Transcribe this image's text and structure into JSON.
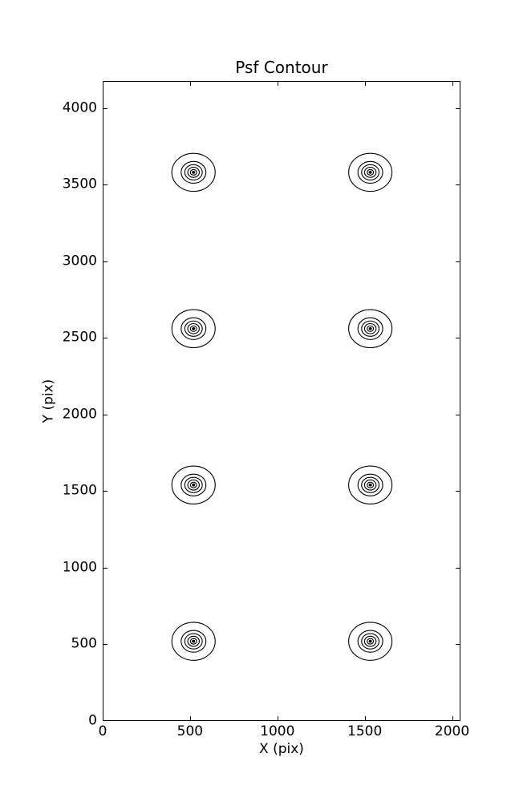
{
  "figure": {
    "background": "#ffffff",
    "line_color": "#000000"
  },
  "chart_data": {
    "type": "contour",
    "title": "Psf Contour",
    "xlabel": "X (pix)",
    "ylabel": "Y (pix)",
    "xlim": [
      0,
      2048
    ],
    "ylim": [
      0,
      4176
    ],
    "xticks": [
      0,
      500,
      1000,
      1500,
      2000
    ],
    "yticks": [
      0,
      500,
      1000,
      1500,
      2000,
      2500,
      3000,
      3500,
      4000
    ],
    "grid": false,
    "legend": null,
    "line_color": "#000000",
    "psf_centers": [
      {
        "x": 520,
        "y": 3580
      },
      {
        "x": 1532,
        "y": 3580
      },
      {
        "x": 520,
        "y": 2560
      },
      {
        "x": 1532,
        "y": 2560
      },
      {
        "x": 520,
        "y": 1540
      },
      {
        "x": 1532,
        "y": 1540
      },
      {
        "x": 520,
        "y": 520
      },
      {
        "x": 1532,
        "y": 520
      }
    ],
    "contour_ring_radii_pix": [
      124,
      71,
      50,
      33,
      18
    ],
    "center_dot_radius_pix": 7
  }
}
